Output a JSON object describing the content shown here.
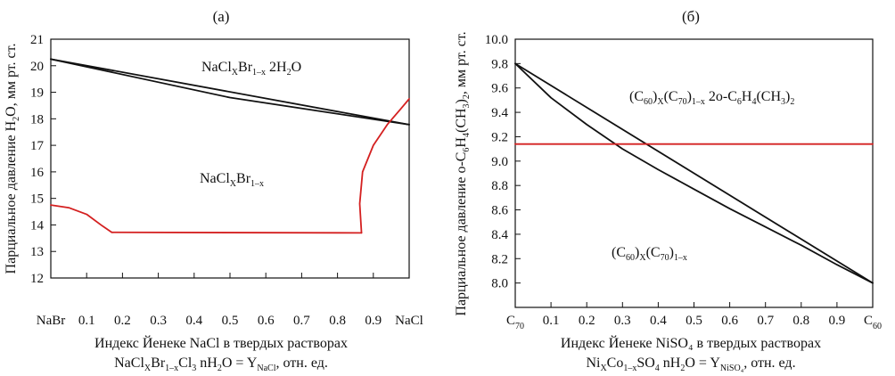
{
  "chart_data": [
    {
      "type": "line",
      "panel_label": "(а)",
      "xlabel_line1": "Индекс Йенеке NaCl в твердых растворах",
      "xlabel_line2": {
        "p1": "NaCl",
        "s1": "X",
        "p2": "Br",
        "s2": "1–x",
        "p3": "Cl",
        "s3": "3",
        "p4": " nH",
        "s4": "2",
        "p5": "O = Y",
        "s5": "NaCl",
        "p6": ", отн. ед."
      },
      "ylabel": {
        "p1": "Парциальное давление H",
        "s1": "2",
        "p2": "O, мм рт. ст."
      },
      "xlim": [
        0,
        1
      ],
      "ylim": [
        12,
        21
      ],
      "x_ticks": [
        {
          "v": 0,
          "label": "NaBr"
        },
        {
          "v": 0.1,
          "label": "0.1"
        },
        {
          "v": 0.2,
          "label": "0.2"
        },
        {
          "v": 0.3,
          "label": "0.3"
        },
        {
          "v": 0.4,
          "label": "0.4"
        },
        {
          "v": 0.5,
          "label": "0.5"
        },
        {
          "v": 0.6,
          "label": "0.6"
        },
        {
          "v": 0.7,
          "label": "0.7"
        },
        {
          "v": 0.8,
          "label": "0.8"
        },
        {
          "v": 0.9,
          "label": "0.9"
        },
        {
          "v": 1,
          "label": "NaCl"
        }
      ],
      "y_ticks": [
        {
          "v": 12,
          "label": "12"
        },
        {
          "v": 13,
          "label": "13"
        },
        {
          "v": 14,
          "label": "14"
        },
        {
          "v": 15,
          "label": "15"
        },
        {
          "v": 16,
          "label": "16"
        },
        {
          "v": 17,
          "label": "17"
        },
        {
          "v": 18,
          "label": "18"
        },
        {
          "v": 19,
          "label": "19"
        },
        {
          "v": 20,
          "label": "20"
        },
        {
          "v": 21,
          "label": "21"
        }
      ],
      "series": [
        {
          "name": "upper-black-1",
          "color": "#111111",
          "x": [
            0,
            1
          ],
          "y": [
            20.25,
            17.78
          ]
        },
        {
          "name": "upper-black-2",
          "color": "#111111",
          "x": [
            0,
            0.5,
            1
          ],
          "y": [
            20.25,
            18.8,
            17.78
          ]
        },
        {
          "name": "red-left",
          "color": "#d42020",
          "x": [
            0,
            0.05,
            0.1,
            0.14,
            0.17
          ],
          "y": [
            14.75,
            14.65,
            14.4,
            14.0,
            13.72
          ]
        },
        {
          "name": "red-flat",
          "color": "#d42020",
          "x": [
            0.17,
            0.5,
            0.867
          ],
          "y": [
            13.72,
            13.71,
            13.7
          ]
        },
        {
          "name": "red-right",
          "color": "#d42020",
          "x": [
            0.867,
            0.862,
            0.87,
            0.9,
            0.94,
            0.975,
            1.0
          ],
          "y": [
            13.7,
            14.8,
            16.0,
            17.0,
            17.8,
            18.35,
            18.75
          ]
        }
      ],
      "annotations": [
        {
          "id": "hydrate",
          "parts": {
            "p1": "NaCl",
            "s1": "X",
            "p2": "Br",
            "s2": "1–x",
            "p3": " 2H",
            "s3": "2",
            "p4": "O"
          }
        },
        {
          "id": "anhydrous",
          "parts": {
            "p1": "NaCl",
            "s1": "X",
            "p2": "Br",
            "s2": "1–x"
          }
        }
      ]
    },
    {
      "type": "line",
      "panel_label": "(б)",
      "xlabel_line1": "Индекс Йенеке NiSO₄ в твердых растворах",
      "xlabel_line2": {
        "p1": "Ni",
        "s1": "X",
        "p2": "Co",
        "s2": "1–x",
        "p3": "SO",
        "s3": "4",
        "p4": " nH",
        "s4": "2",
        "p5": "O = Y",
        "s5": "NiSO₄",
        "p6": ", отн. ед."
      },
      "ylabel": {
        "p1": "Парциальное давление o-C",
        "s1": "6",
        "p2": "H",
        "s2": "4",
        "p3": "(CH",
        "s3": "3",
        "p4": ")",
        "s4": "2",
        "p5": ", мм рт. ст."
      },
      "xlim": [
        0,
        1
      ],
      "ylim": [
        7.8,
        10.0
      ],
      "x_ticks": [
        {
          "v": 0,
          "label": "C",
          "sub": "70"
        },
        {
          "v": 0.1,
          "label": "0.1"
        },
        {
          "v": 0.2,
          "label": "0.2"
        },
        {
          "v": 0.3,
          "label": "0.3"
        },
        {
          "v": 0.4,
          "label": "0.4"
        },
        {
          "v": 0.5,
          "label": "0.5"
        },
        {
          "v": 0.6,
          "label": "0.6"
        },
        {
          "v": 0.7,
          "label": "0.7"
        },
        {
          "v": 0.8,
          "label": "0.8"
        },
        {
          "v": 0.9,
          "label": "0.9"
        },
        {
          "v": 1,
          "label": "C",
          "sub": "60"
        }
      ],
      "y_ticks": [
        {
          "v": 8.0,
          "label": "8.0"
        },
        {
          "v": 8.2,
          "label": "8.2"
        },
        {
          "v": 8.4,
          "label": "8.4"
        },
        {
          "v": 8.6,
          "label": "8.6"
        },
        {
          "v": 8.8,
          "label": "8.8"
        },
        {
          "v": 9.0,
          "label": "9.0"
        },
        {
          "v": 9.2,
          "label": "9.2"
        },
        {
          "v": 9.4,
          "label": "9.4"
        },
        {
          "v": 9.6,
          "label": "9.6"
        },
        {
          "v": 9.8,
          "label": "9.8"
        },
        {
          "v": 10.0,
          "label": "10.0"
        }
      ],
      "series": [
        {
          "name": "black-straight",
          "color": "#111111",
          "x": [
            0,
            1
          ],
          "y": [
            9.8,
            8.0
          ]
        },
        {
          "name": "black-curved",
          "color": "#111111",
          "x": [
            0,
            0.1,
            0.2,
            0.3,
            0.4,
            0.5,
            0.6,
            0.7,
            0.8,
            0.9,
            1.0
          ],
          "y": [
            9.8,
            9.52,
            9.3,
            9.1,
            8.93,
            8.77,
            8.61,
            8.46,
            8.31,
            8.15,
            8.0
          ]
        },
        {
          "name": "red-horizontal",
          "color": "#d42020",
          "x": [
            0,
            1
          ],
          "y": [
            9.14,
            9.14
          ]
        }
      ],
      "annotations": [
        {
          "id": "solvate",
          "parts": {
            "p1": "(C",
            "s1": "60",
            "p2": ")",
            "s2": "X",
            "p3": "(C",
            "s3": "70",
            "p4": ")",
            "s4": "1–x",
            "p5": " 2o-C",
            "s5": "6",
            "p6": "H",
            "s6": "4",
            "p7": "(CH",
            "s7": "3",
            "p8": ")",
            "s8": "2"
          }
        },
        {
          "id": "unsolvated",
          "parts": {
            "p1": "(C",
            "s1": "60",
            "p2": ")",
            "s2": "X",
            "p3": "(C",
            "s3": "70",
            "p4": ")",
            "s4": "1–x"
          }
        }
      ]
    }
  ]
}
